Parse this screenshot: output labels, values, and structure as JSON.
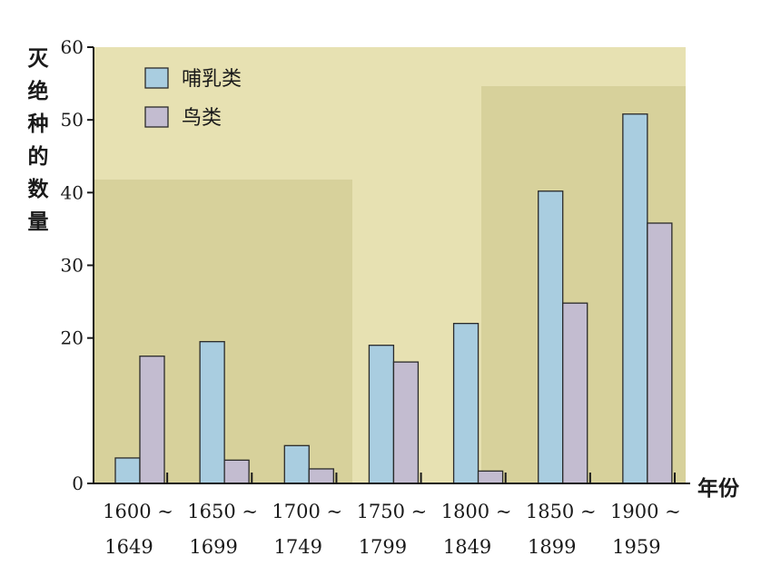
{
  "chart_data": {
    "type": "bar",
    "ylabel": "灭绝种的数量",
    "xlabel": "年份",
    "ylim": [
      0,
      60
    ],
    "yticks": [
      0,
      20,
      30,
      40,
      50,
      60
    ],
    "grid": false,
    "legend_position": "top-left",
    "categories": [
      [
        "1600 ~",
        "1649"
      ],
      [
        "1650 ~",
        "1699"
      ],
      [
        "1700 ~",
        "1749"
      ],
      [
        "1750 ~",
        "1799"
      ],
      [
        "1800 ~",
        "1849"
      ],
      [
        "1850 ~",
        "1899"
      ],
      [
        "1900 ~",
        "1959"
      ]
    ],
    "series": [
      {
        "name": "哺乳类",
        "color": "#a9cde0",
        "values": [
          3.5,
          19.5,
          5.2,
          19,
          22,
          40.2,
          50.8
        ]
      },
      {
        "name": "鸟类",
        "color": "#c3bcd0",
        "values": [
          17.5,
          3.2,
          2,
          16.7,
          1.7,
          24.8,
          35.8
        ]
      }
    ],
    "colors": {
      "plot_background": "#e7e1b2",
      "shaded_panel": "#d7d19b",
      "axis": "#1a1a1a",
      "bar_outline": "#2a2a2a"
    }
  }
}
